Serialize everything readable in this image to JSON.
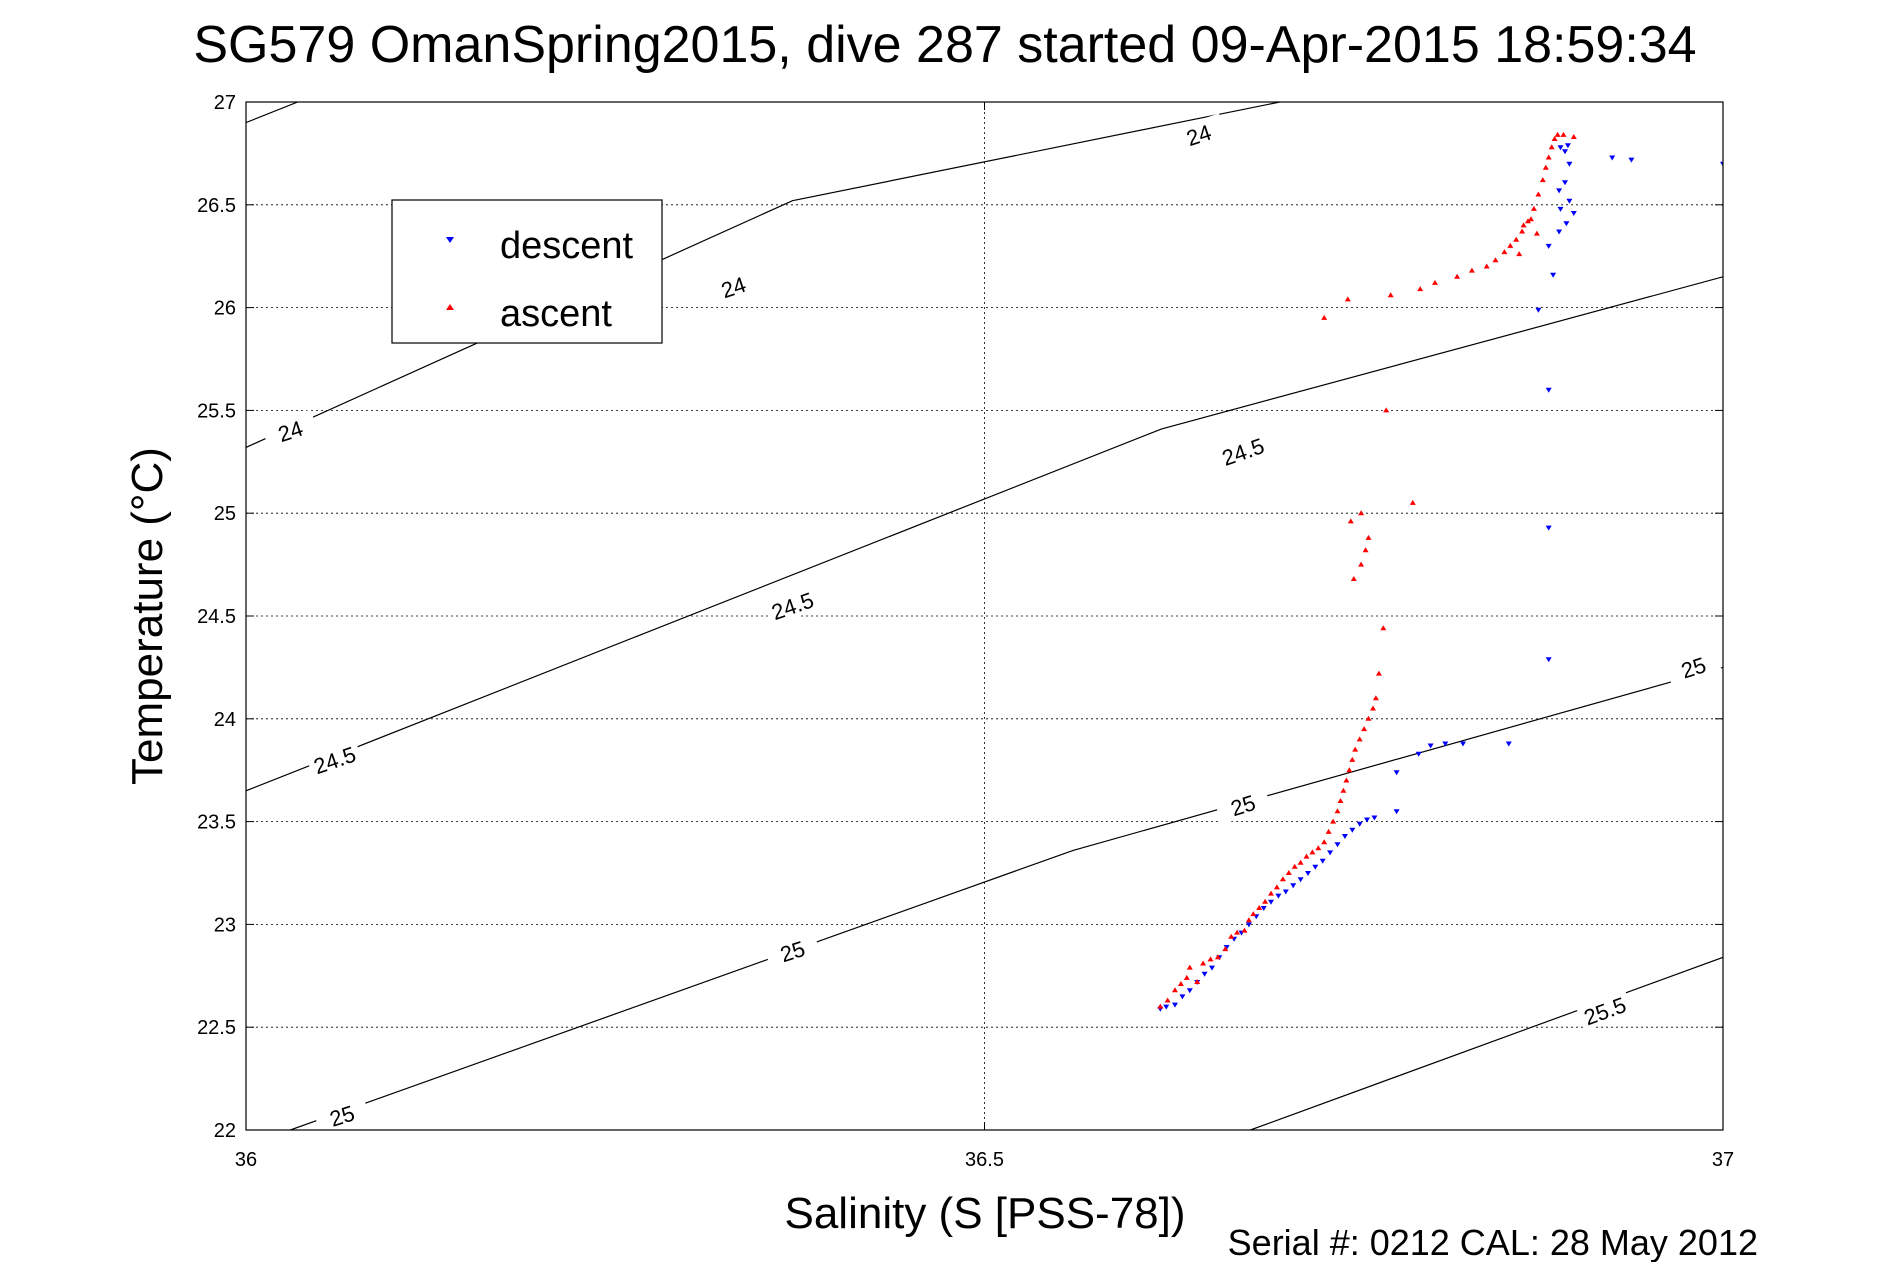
{
  "figure": {
    "title": "SG579 OmanSpring2015, dive 287 started 09-Apr-2015 18:59:34",
    "footer": "Serial #: 0212  CAL: 28 May 2012"
  },
  "chart_data": {
    "type": "scatter",
    "xlabel": "Salinity (S [PSS-78])",
    "ylabel": "Temperature (°C)",
    "xlim": [
      36,
      37
    ],
    "ylim": [
      22,
      27
    ],
    "xticks": [
      36,
      36.5,
      37
    ],
    "xtick_labels": [
      "36",
      "36.5",
      "37"
    ],
    "yticks": [
      22,
      22.5,
      23,
      23.5,
      24,
      24.5,
      25,
      25.5,
      26,
      26.5,
      27
    ],
    "ytick_labels": [
      "22",
      "22.5",
      "23",
      "23.5",
      "24",
      "24.5",
      "25",
      "25.5",
      "26",
      "26.5",
      "27"
    ],
    "grid": true,
    "legend": {
      "position": "top-left",
      "entries": [
        "descent",
        "ascent"
      ]
    },
    "contours": [
      {
        "level": "24",
        "segments": [
          [
            [
              36,
              25.32
            ],
            [
              36.37,
              26.52
            ],
            [
              36.7,
              27.0
            ]
          ],
          [
            [
              36,
              26.9
            ],
            [
              36.035,
              27.0
            ]
          ]
        ],
        "labels": [
          {
            "text": "24",
            "x": 36.03,
            "y": 25.4
          },
          {
            "text": "24",
            "x": 36.33,
            "y": 26.1
          },
          {
            "text": "24",
            "x": 36.645,
            "y": 26.84
          }
        ]
      },
      {
        "level": "24.5",
        "segments": [
          [
            [
              36,
              23.65
            ],
            [
              36.62,
              25.41
            ],
            [
              37,
              26.15
            ]
          ]
        ],
        "labels": [
          {
            "text": "24.5",
            "x": 36.06,
            "y": 23.8
          },
          {
            "text": "24.5",
            "x": 36.37,
            "y": 24.55
          },
          {
            "text": "24.5",
            "x": 36.675,
            "y": 25.3
          }
        ]
      },
      {
        "level": "25",
        "segments": [
          [
            [
              36.03,
              22.0
            ],
            [
              36.56,
              23.36
            ],
            [
              37,
              24.25
            ]
          ]
        ],
        "labels": [
          {
            "text": "25",
            "x": 36.065,
            "y": 22.07
          },
          {
            "text": "25",
            "x": 36.37,
            "y": 22.87
          },
          {
            "text": "25",
            "x": 36.675,
            "y": 23.58
          },
          {
            "text": "25",
            "x": 36.98,
            "y": 24.25
          }
        ]
      },
      {
        "level": "25.5",
        "segments": [
          [
            [
              36.68,
              22.0
            ],
            [
              37,
              22.84
            ]
          ]
        ],
        "labels": [
          {
            "text": "25.5",
            "x": 36.92,
            "y": 22.58
          }
        ]
      }
    ],
    "series": [
      {
        "name": "descent",
        "color": "#0000ff",
        "marker": "triangle-down",
        "points": [
          [
            36.619,
            22.59
          ],
          [
            36.623,
            22.6
          ],
          [
            36.629,
            22.61
          ],
          [
            36.634,
            22.65
          ],
          [
            36.639,
            22.68
          ],
          [
            36.644,
            22.72
          ],
          [
            36.649,
            22.76
          ],
          [
            36.654,
            22.79
          ],
          [
            36.659,
            22.84
          ],
          [
            36.664,
            22.89
          ],
          [
            36.669,
            22.93
          ],
          [
            36.674,
            22.96
          ],
          [
            36.679,
            23.0
          ],
          [
            36.684,
            23.04
          ],
          [
            36.689,
            23.08
          ],
          [
            36.694,
            23.11
          ],
          [
            36.699,
            23.14
          ],
          [
            36.704,
            23.16
          ],
          [
            36.709,
            23.19
          ],
          [
            36.714,
            23.22
          ],
          [
            36.719,
            23.25
          ],
          [
            36.724,
            23.28
          ],
          [
            36.729,
            23.31
          ],
          [
            36.734,
            23.35
          ],
          [
            36.739,
            23.39
          ],
          [
            36.744,
            23.43
          ],
          [
            36.749,
            23.46
          ],
          [
            36.754,
            23.49
          ],
          [
            36.759,
            23.51
          ],
          [
            36.764,
            23.52
          ],
          [
            36.779,
            23.55
          ],
          [
            36.779,
            23.74
          ],
          [
            36.794,
            23.83
          ],
          [
            36.802,
            23.87
          ],
          [
            36.812,
            23.88
          ],
          [
            36.824,
            23.88
          ],
          [
            36.855,
            23.88
          ],
          [
            36.882,
            24.29
          ],
          [
            36.882,
            24.93
          ],
          [
            36.882,
            25.6
          ],
          [
            36.875,
            25.99
          ],
          [
            36.885,
            26.16
          ],
          [
            36.882,
            26.3
          ],
          [
            36.889,
            26.37
          ],
          [
            36.894,
            26.41
          ],
          [
            36.899,
            26.46
          ],
          [
            36.89,
            26.48
          ],
          [
            36.896,
            26.52
          ],
          [
            36.889,
            26.57
          ],
          [
            36.893,
            26.61
          ],
          [
            36.896,
            26.7
          ],
          [
            36.893,
            26.76
          ],
          [
            36.89,
            26.78
          ],
          [
            36.895,
            26.79
          ],
          [
            36.925,
            26.73
          ],
          [
            36.938,
            26.72
          ],
          [
            37.0,
            26.7
          ]
        ]
      },
      {
        "name": "ascent",
        "color": "#ff0000",
        "marker": "triangle-up",
        "points": [
          [
            36.619,
            22.6
          ],
          [
            36.624,
            22.63
          ],
          [
            36.629,
            22.68
          ],
          [
            36.633,
            22.71
          ],
          [
            36.637,
            22.74
          ],
          [
            36.644,
            22.72
          ],
          [
            36.639,
            22.79
          ],
          [
            36.648,
            22.81
          ],
          [
            36.653,
            22.83
          ],
          [
            36.658,
            22.84
          ],
          [
            36.663,
            22.88
          ],
          [
            36.667,
            22.94
          ],
          [
            36.671,
            22.96
          ],
          [
            36.676,
            22.97
          ],
          [
            36.679,
            23.02
          ],
          [
            36.682,
            23.05
          ],
          [
            36.686,
            23.08
          ],
          [
            36.69,
            23.11
          ],
          [
            36.694,
            23.15
          ],
          [
            36.698,
            23.18
          ],
          [
            36.702,
            23.22
          ],
          [
            36.706,
            23.25
          ],
          [
            36.71,
            23.28
          ],
          [
            36.714,
            23.3
          ],
          [
            36.718,
            23.33
          ],
          [
            36.722,
            23.35
          ],
          [
            36.726,
            23.37
          ],
          [
            36.73,
            23.4
          ],
          [
            36.733,
            23.45
          ],
          [
            36.736,
            23.5
          ],
          [
            36.739,
            23.55
          ],
          [
            36.741,
            23.6
          ],
          [
            36.743,
            23.65
          ],
          [
            36.745,
            23.7
          ],
          [
            36.747,
            23.75
          ],
          [
            36.749,
            23.8
          ],
          [
            36.751,
            23.85
          ],
          [
            36.754,
            23.9
          ],
          [
            36.757,
            23.95
          ],
          [
            36.76,
            24.0
          ],
          [
            36.763,
            24.05
          ],
          [
            36.765,
            24.1
          ],
          [
            36.767,
            24.22
          ],
          [
            36.77,
            24.44
          ],
          [
            36.75,
            24.68
          ],
          [
            36.755,
            24.75
          ],
          [
            36.758,
            24.82
          ],
          [
            36.76,
            24.88
          ],
          [
            36.748,
            24.96
          ],
          [
            36.755,
            25.0
          ],
          [
            36.79,
            25.05
          ],
          [
            36.772,
            25.5
          ],
          [
            36.73,
            25.95
          ],
          [
            36.746,
            26.04
          ],
          [
            36.775,
            26.06
          ],
          [
            36.795,
            26.09
          ],
          [
            36.805,
            26.12
          ],
          [
            36.82,
            26.15
          ],
          [
            36.83,
            26.18
          ],
          [
            36.84,
            26.2
          ],
          [
            36.846,
            26.23
          ],
          [
            36.852,
            26.27
          ],
          [
            36.856,
            26.3
          ],
          [
            36.86,
            26.33
          ],
          [
            36.864,
            26.37
          ],
          [
            36.868,
            26.42
          ],
          [
            36.872,
            26.48
          ],
          [
            36.875,
            26.55
          ],
          [
            36.878,
            26.62
          ],
          [
            36.88,
            26.68
          ],
          [
            36.882,
            26.73
          ],
          [
            36.884,
            26.78
          ],
          [
            36.886,
            26.82
          ],
          [
            36.888,
            26.84
          ],
          [
            36.892,
            26.84
          ],
          [
            36.899,
            26.83
          ],
          [
            36.865,
            26.4
          ],
          [
            36.87,
            26.43
          ],
          [
            36.874,
            26.36
          ],
          [
            36.862,
            26.26
          ]
        ]
      }
    ]
  }
}
